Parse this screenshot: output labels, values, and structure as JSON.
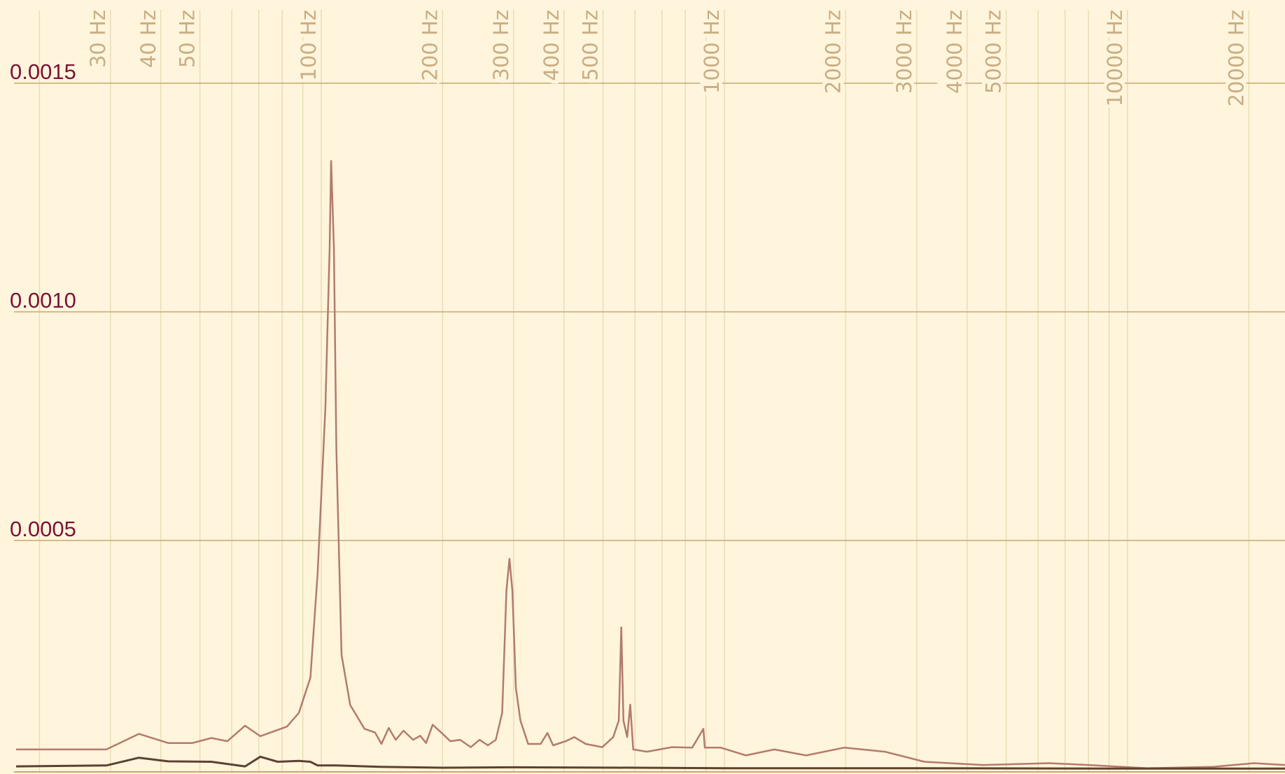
{
  "chart_data": {
    "type": "line",
    "title": "",
    "xlabel": "",
    "ylabel": "",
    "x_scale": "log",
    "xlim": [
      16,
      25000
    ],
    "ylim": [
      0,
      0.00157
    ],
    "grid": true,
    "x_ticks": [
      30,
      40,
      50,
      100,
      200,
      300,
      400,
      500,
      1000,
      2000,
      3000,
      4000,
      5000,
      10000,
      20000
    ],
    "x_tick_labels": [
      "30 Hz",
      "40 Hz",
      "50 Hz",
      "100 Hz",
      "200 Hz",
      "300 Hz",
      "400 Hz",
      "500 Hz",
      "1000 Hz",
      "2000 Hz",
      "3000 Hz",
      "4000 Hz",
      "5000 Hz",
      "10000 Hz",
      "20000 Hz"
    ],
    "x_minor_grid": [
      20,
      30,
      40,
      50,
      60,
      70,
      80,
      90,
      100,
      200,
      300,
      400,
      500,
      600,
      700,
      800,
      900,
      1000,
      2000,
      3000,
      4000,
      5000,
      6000,
      7000,
      8000,
      9000,
      10000,
      20000
    ],
    "y_ticks": [
      0.0005,
      0.001,
      0.0015
    ],
    "y_tick_labels": [
      "0.0005",
      "0.0010",
      "0.0015"
    ],
    "colors": {
      "background": "#fff5dc",
      "major_grid": "#c9a772",
      "minor_grid": "#eadcb6",
      "x_labels": "#c9ad84",
      "y_labels": "#7d1236",
      "series_1": "#b37a6f",
      "series_2": "#5b4232"
    },
    "series": [
      {
        "points": [
          [
            17.5,
            4.3e-05
          ],
          [
            29.3,
            4.3e-05
          ],
          [
            35.3,
            7.7e-05
          ],
          [
            41.7,
            5.7e-05
          ],
          [
            47.9,
            5.7e-05
          ],
          [
            53.4,
            6.8e-05
          ],
          [
            58.5,
            6.1e-05
          ],
          [
            64.7,
            9.5e-05
          ],
          [
            70.6,
            7.2e-05
          ],
          [
            82.2,
            9.3e-05
          ],
          [
            88,
            0.000123
          ],
          [
            94,
            0.0002
          ],
          [
            98,
            0.00043
          ],
          [
            102.4,
            0.00079
          ],
          [
            104.9,
            0.00114
          ],
          [
            105.8,
            0.00133
          ],
          [
            107.5,
            0.00114
          ],
          [
            109,
            0.0007
          ],
          [
            112.3,
            0.00025
          ],
          [
            118,
            0.00014
          ],
          [
            128,
            8.8e-05
          ],
          [
            136,
            8e-05
          ],
          [
            141,
            5.5e-05
          ],
          [
            147,
            9e-05
          ],
          [
            153,
            6.4e-05
          ],
          [
            160,
            8.4e-05
          ],
          [
            169,
            6.4e-05
          ],
          [
            176,
            7.3e-05
          ],
          [
            182,
            5.7e-05
          ],
          [
            189,
            9.7e-05
          ],
          [
            199,
            7.9e-05
          ],
          [
            209,
            6.1e-05
          ],
          [
            221,
            6.4e-05
          ],
          [
            235,
            4.8e-05
          ],
          [
            247,
            6.4e-05
          ],
          [
            259,
            5.2e-05
          ],
          [
            271,
            6.4e-05
          ],
          [
            281,
            0.000123
          ],
          [
            288,
            0.00039
          ],
          [
            293,
            0.00046
          ],
          [
            298,
            0.00039
          ],
          [
            304,
            0.000177
          ],
          [
            312,
            0.000106
          ],
          [
            326,
            5.5e-05
          ],
          [
            350,
            5.5e-05
          ],
          [
            364,
            7.9e-05
          ],
          [
            376,
            5.2e-05
          ],
          [
            404,
            6.1e-05
          ],
          [
            424,
            7e-05
          ],
          [
            453,
            5.5e-05
          ],
          [
            498,
            4.8e-05
          ],
          [
            530,
            7e-05
          ],
          [
            547,
            0.000106
          ],
          [
            555,
            0.00031
          ],
          [
            562,
            0.000106
          ],
          [
            574,
            7e-05
          ],
          [
            584,
            0.000141
          ],
          [
            594,
            4.3e-05
          ],
          [
            643,
            3.8e-05
          ],
          [
            741,
            4.8e-05
          ],
          [
            832,
            4.7e-05
          ],
          [
            887,
            8.8e-05
          ],
          [
            894,
            4.7e-05
          ],
          [
            980,
            4.7e-05
          ],
          [
            1131,
            3e-05
          ],
          [
            1330,
            4.3e-05
          ],
          [
            1596,
            3e-05
          ],
          [
            1982,
            4.7e-05
          ],
          [
            2500,
            3.8e-05
          ],
          [
            3134,
            1.6e-05
          ],
          [
            4380,
            9e-06
          ],
          [
            6400,
            1.3e-05
          ],
          [
            8000,
            9e-06
          ],
          [
            11200,
            2e-06
          ],
          [
            16300,
            5e-06
          ],
          [
            20600,
            1.3e-05
          ],
          [
            24600,
            9e-06
          ]
        ]
      },
      {
        "points": [
          [
            17.5,
            6e-06
          ],
          [
            29.3,
            8e-06
          ],
          [
            35.3,
            2.5e-05
          ],
          [
            41.7,
            1.7e-05
          ],
          [
            53.4,
            1.6e-05
          ],
          [
            64.7,
            6e-06
          ],
          [
            70.6,
            2.7e-05
          ],
          [
            78,
            1.6e-05
          ],
          [
            88,
            1.8e-05
          ],
          [
            94,
            1.6e-05
          ],
          [
            98,
            8e-06
          ],
          [
            109,
            8e-06
          ],
          [
            140,
            5e-06
          ],
          [
            200,
            3e-06
          ],
          [
            300,
            4e-06
          ],
          [
            600,
            3e-06
          ],
          [
            1000,
            2e-06
          ],
          [
            3000,
            2e-06
          ],
          [
            10000,
            1e-06
          ],
          [
            24600,
            1e-06
          ]
        ]
      }
    ]
  }
}
